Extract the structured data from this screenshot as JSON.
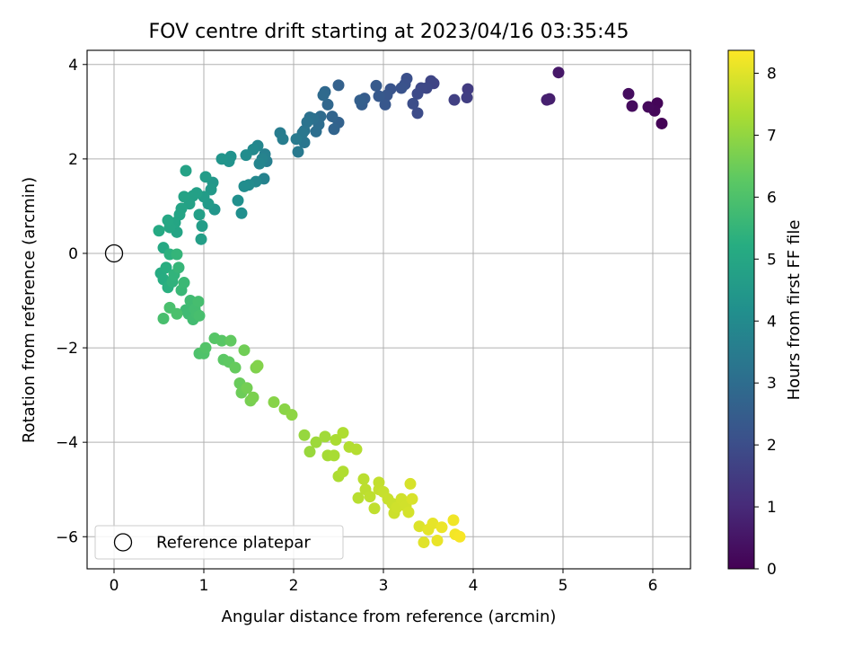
{
  "chart_data": {
    "type": "scatter",
    "title": "FOV centre drift starting at 2023/04/16 03:35:45",
    "xlabel": "Angular distance from reference (arcmin)",
    "ylabel": "Rotation from reference (arcmin)",
    "xlim": [
      -0.3,
      6.42
    ],
    "ylim": [
      -6.68,
      4.3
    ],
    "xticks": [
      0,
      1,
      2,
      3,
      4,
      5,
      6
    ],
    "yticks": [
      -6,
      -4,
      -2,
      0,
      2,
      4
    ],
    "grid": true,
    "legend": {
      "location": "lower-left",
      "entries": [
        "Reference platepar"
      ]
    },
    "reference_point": {
      "x": 0,
      "y": 0,
      "marker": "open-circle"
    },
    "colormap": "viridis",
    "colorbar": {
      "label": "Hours from first FF file",
      "range": [
        0,
        8.37
      ],
      "ticks": [
        0,
        1,
        2,
        3,
        4,
        5,
        6,
        7,
        8
      ]
    },
    "points": [
      [
        6.1,
        2.75,
        0.05
      ],
      [
        6.05,
        3.18,
        0.1
      ],
      [
        6.02,
        3.02,
        0.15
      ],
      [
        5.95,
        3.1,
        0.2
      ],
      [
        5.77,
        3.12,
        0.25
      ],
      [
        5.73,
        3.38,
        0.3
      ],
      [
        4.95,
        3.83,
        0.55
      ],
      [
        4.85,
        3.27,
        0.7
      ],
      [
        4.82,
        3.25,
        0.75
      ],
      [
        3.94,
        3.48,
        1.5
      ],
      [
        3.93,
        3.3,
        1.55
      ],
      [
        3.79,
        3.25,
        1.6
      ],
      [
        3.56,
        3.6,
        1.7
      ],
      [
        3.53,
        3.65,
        1.75
      ],
      [
        3.48,
        3.5,
        1.8
      ],
      [
        3.42,
        3.5,
        1.85
      ],
      [
        3.38,
        3.38,
        1.9
      ],
      [
        3.38,
        2.97,
        1.95
      ],
      [
        3.33,
        3.17,
        2.0
      ],
      [
        3.26,
        3.7,
        2.05
      ],
      [
        3.24,
        3.58,
        2.1
      ],
      [
        3.2,
        3.5,
        2.15
      ],
      [
        3.08,
        3.48,
        2.2
      ],
      [
        3.04,
        3.35,
        2.25
      ],
      [
        3.02,
        3.15,
        2.3
      ],
      [
        2.95,
        3.33,
        2.35
      ],
      [
        2.92,
        3.55,
        2.4
      ],
      [
        2.79,
        3.28,
        2.45
      ],
      [
        2.76,
        3.15,
        2.5
      ],
      [
        2.74,
        3.24,
        2.55
      ],
      [
        2.5,
        3.56,
        2.6
      ],
      [
        2.5,
        2.77,
        2.65
      ],
      [
        2.45,
        2.63,
        2.7
      ],
      [
        2.43,
        2.9,
        2.75
      ],
      [
        2.38,
        3.15,
        2.8
      ],
      [
        2.35,
        3.42,
        2.85
      ],
      [
        2.33,
        3.35,
        2.9
      ],
      [
        2.3,
        2.9,
        2.95
      ],
      [
        2.28,
        2.73,
        3.0
      ],
      [
        2.25,
        2.58,
        3.05
      ],
      [
        2.22,
        2.85,
        3.1
      ],
      [
        2.18,
        2.88,
        3.15
      ],
      [
        2.15,
        2.78,
        3.2
      ],
      [
        2.12,
        2.6,
        3.25
      ],
      [
        2.12,
        2.35,
        3.3
      ],
      [
        2.1,
        2.55,
        3.35
      ],
      [
        2.05,
        2.15,
        3.4
      ],
      [
        2.03,
        2.42,
        3.45
      ],
      [
        1.85,
        2.55,
        3.5
      ],
      [
        1.88,
        2.42,
        3.55
      ],
      [
        1.7,
        1.95,
        3.6
      ],
      [
        1.68,
        2.1,
        3.65
      ],
      [
        1.67,
        1.58,
        3.7
      ],
      [
        1.65,
        2.0,
        3.75
      ],
      [
        1.62,
        1.9,
        3.8
      ],
      [
        1.6,
        2.28,
        3.85
      ],
      [
        1.58,
        1.52,
        3.9
      ],
      [
        1.55,
        2.2,
        3.95
      ],
      [
        1.5,
        1.45,
        4.0
      ],
      [
        1.47,
        2.08,
        4.05
      ],
      [
        1.45,
        1.42,
        4.1
      ],
      [
        1.42,
        0.85,
        4.15
      ],
      [
        1.38,
        1.12,
        4.2
      ],
      [
        1.3,
        2.05,
        4.25
      ],
      [
        1.28,
        1.95,
        4.3
      ],
      [
        1.2,
        2.0,
        4.35
      ],
      [
        1.12,
        0.93,
        4.4
      ],
      [
        1.1,
        1.5,
        4.45
      ],
      [
        1.08,
        1.35,
        4.5
      ],
      [
        1.05,
        1.05,
        4.55
      ],
      [
        1.02,
        1.62,
        4.6
      ],
      [
        1.0,
        1.2,
        4.62
      ],
      [
        0.98,
        0.58,
        4.65
      ],
      [
        0.97,
        0.3,
        4.7
      ],
      [
        0.95,
        0.82,
        4.72
      ],
      [
        0.92,
        1.28,
        4.75
      ],
      [
        0.88,
        1.22,
        4.78
      ],
      [
        0.84,
        1.05,
        4.8
      ],
      [
        0.8,
        1.75,
        4.82
      ],
      [
        0.78,
        1.2,
        4.85
      ],
      [
        0.75,
        0.95,
        4.88
      ],
      [
        0.73,
        0.82,
        4.9
      ],
      [
        0.7,
        0.45,
        4.92
      ],
      [
        0.68,
        0.65,
        4.95
      ],
      [
        0.62,
        0.55,
        4.98
      ],
      [
        0.6,
        0.7,
        5.0
      ],
      [
        0.55,
        0.12,
        5.05
      ],
      [
        0.5,
        0.48,
        5.1
      ],
      [
        0.52,
        -0.42,
        5.15
      ],
      [
        0.55,
        -0.55,
        5.2
      ],
      [
        0.58,
        -0.3,
        5.25
      ],
      [
        0.6,
        -0.72,
        5.3
      ],
      [
        0.62,
        -0.02,
        5.35
      ],
      [
        0.65,
        -0.6,
        5.4
      ],
      [
        0.67,
        -0.45,
        5.45
      ],
      [
        0.7,
        -0.02,
        5.5
      ],
      [
        0.72,
        -0.3,
        5.55
      ],
      [
        0.75,
        -0.78,
        5.6
      ],
      [
        0.78,
        -0.62,
        5.65
      ],
      [
        0.8,
        -1.2,
        5.7
      ],
      [
        0.83,
        -1.28,
        5.72
      ],
      [
        0.85,
        -1.0,
        5.75
      ],
      [
        0.88,
        -1.4,
        5.78
      ],
      [
        0.9,
        -1.18,
        5.8
      ],
      [
        0.92,
        -1.28,
        5.82
      ],
      [
        0.94,
        -1.02,
        5.85
      ],
      [
        0.95,
        -1.32,
        5.88
      ],
      [
        0.55,
        -1.38,
        5.9
      ],
      [
        0.62,
        -1.15,
        5.92
      ],
      [
        0.7,
        -1.28,
        5.95
      ],
      [
        0.95,
        -2.12,
        6.0
      ],
      [
        1.0,
        -2.12,
        6.05
      ],
      [
        1.02,
        -2.0,
        6.1
      ],
      [
        1.12,
        -1.8,
        6.15
      ],
      [
        1.2,
        -1.85,
        6.2
      ],
      [
        1.22,
        -2.25,
        6.25
      ],
      [
        1.28,
        -2.3,
        6.3
      ],
      [
        1.3,
        -1.85,
        6.35
      ],
      [
        1.35,
        -2.42,
        6.4
      ],
      [
        1.4,
        -2.75,
        6.45
      ],
      [
        1.42,
        -2.95,
        6.5
      ],
      [
        1.45,
        -2.05,
        6.55
      ],
      [
        1.48,
        -2.85,
        6.6
      ],
      [
        1.52,
        -3.12,
        6.65
      ],
      [
        1.55,
        -3.05,
        6.7
      ],
      [
        1.58,
        -2.42,
        6.75
      ],
      [
        1.6,
        -2.38,
        6.8
      ],
      [
        1.78,
        -3.15,
        6.85
      ],
      [
        1.9,
        -3.3,
        6.9
      ],
      [
        1.98,
        -3.42,
        6.95
      ],
      [
        2.12,
        -3.85,
        7.05
      ],
      [
        2.18,
        -4.2,
        7.1
      ],
      [
        2.25,
        -4.0,
        7.15
      ],
      [
        2.35,
        -3.88,
        7.2
      ],
      [
        2.38,
        -4.28,
        7.25
      ],
      [
        2.45,
        -4.28,
        7.3
      ],
      [
        2.47,
        -3.95,
        7.32
      ],
      [
        2.5,
        -4.72,
        7.35
      ],
      [
        2.55,
        -3.8,
        7.38
      ],
      [
        2.55,
        -4.62,
        7.4
      ],
      [
        2.62,
        -4.1,
        7.42
      ],
      [
        2.7,
        -4.15,
        7.45
      ],
      [
        2.72,
        -5.18,
        7.5
      ],
      [
        2.78,
        -4.78,
        7.52
      ],
      [
        2.8,
        -5.0,
        7.55
      ],
      [
        2.85,
        -5.15,
        7.58
      ],
      [
        2.9,
        -5.4,
        7.6
      ],
      [
        2.95,
        -4.85,
        7.62
      ],
      [
        2.95,
        -5.0,
        7.65
      ],
      [
        3.0,
        -5.05,
        7.68
      ],
      [
        3.05,
        -5.2,
        7.7
      ],
      [
        3.1,
        -5.3,
        7.72
      ],
      [
        3.12,
        -5.5,
        7.75
      ],
      [
        3.15,
        -5.38,
        7.78
      ],
      [
        3.2,
        -5.2,
        7.8
      ],
      [
        3.25,
        -5.35,
        7.82
      ],
      [
        3.28,
        -5.48,
        7.85
      ],
      [
        3.3,
        -4.88,
        7.88
      ],
      [
        3.32,
        -5.2,
        7.9
      ],
      [
        3.4,
        -5.78,
        7.95
      ],
      [
        3.45,
        -6.12,
        8.0
      ],
      [
        3.5,
        -5.85,
        8.05
      ],
      [
        3.55,
        -5.72,
        8.08
      ],
      [
        3.6,
        -6.08,
        8.12
      ],
      [
        3.65,
        -5.8,
        8.15
      ],
      [
        3.78,
        -5.65,
        8.2
      ],
      [
        3.8,
        -5.95,
        8.25
      ],
      [
        3.85,
        -6.0,
        8.3
      ]
    ]
  }
}
